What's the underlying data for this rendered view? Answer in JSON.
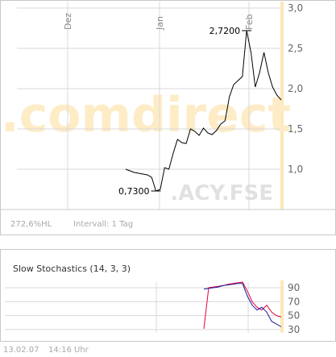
{
  "main_chart": {
    "watermark": ".comdirect",
    "symbol": ".ACY.FSE",
    "footer_change": "272,6%HL",
    "footer_interval": "Intervall: 1 Tag",
    "colors": {
      "band": "#fde7b8",
      "line": "#000000",
      "grid": "#d9d9d9",
      "watermark": "#fdecc6",
      "symbol": "#e1e1e1"
    }
  },
  "stoch_chart": {
    "title": "Slow Stochastics (14, 3, 3)",
    "colors": {
      "k_line": "#e8003a",
      "d_line": "#1a1aa0"
    }
  },
  "timestamp": {
    "date": "13.02.07",
    "time": "14:16 Uhr"
  },
  "chart_data": [
    {
      "type": "line",
      "title": "",
      "x_tick_labels": [
        "Dez",
        "Jan",
        "Feb"
      ],
      "y_ticks": [
        "1,0",
        "1,5",
        "2,0",
        "2,5",
        "3,0"
      ],
      "ylim": [
        0.5,
        3.0
      ],
      "grid": true,
      "annotations": [
        {
          "label": "2,7200",
          "value": 2.72
        },
        {
          "label": "0,7300",
          "value": 0.73
        }
      ],
      "series": [
        {
          "values": [
            1.0,
            0.98,
            0.96,
            0.95,
            0.94,
            0.93,
            0.9,
            0.73,
            0.75,
            1.02,
            1.0,
            1.2,
            1.37,
            1.33,
            1.32,
            1.5,
            1.47,
            1.42,
            1.51,
            1.45,
            1.43,
            1.48,
            1.56,
            1.6,
            1.9,
            2.05,
            2.1,
            2.15,
            2.72,
            2.45,
            2.02,
            2.2,
            2.45,
            2.2,
            2.02,
            1.92,
            1.86
          ]
        }
      ]
    },
    {
      "type": "line",
      "title": "Slow Stochastics (14, 3, 3)",
      "y_ticks": [
        "30",
        "50",
        "70",
        "90"
      ],
      "ylim": [
        20,
        100
      ],
      "series": [
        {
          "values": [
            31,
            90,
            91,
            92,
            93,
            95,
            96,
            97,
            98,
            85,
            70,
            62,
            58,
            65,
            55,
            50,
            48
          ]
        },
        {
          "values": [
            88,
            89,
            90,
            91,
            93,
            94,
            95,
            96,
            96,
            78,
            65,
            58,
            62,
            55,
            42,
            38,
            34
          ]
        }
      ]
    }
  ]
}
